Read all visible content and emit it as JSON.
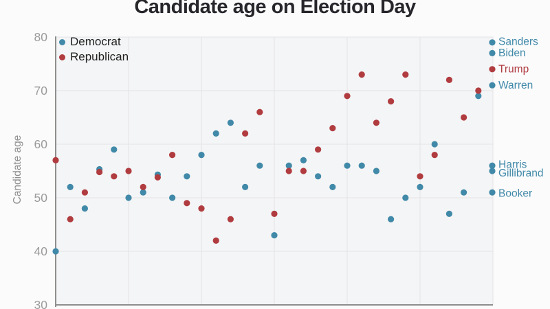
{
  "chart_data": {
    "type": "scatter",
    "title": "Candidate age on Election Day",
    "ylabel": "Candidate age",
    "ylim": [
      30,
      80
    ],
    "yticks": [
      80,
      70,
      60,
      50,
      40,
      30
    ],
    "ytick_labels": [
      "80",
      "70",
      "60",
      "50",
      "40",
      "30"
    ],
    "x_year_range": [
      1900,
      2020
    ],
    "gridline_years": [
      1920,
      1940,
      1960,
      1980,
      2000,
      2020
    ],
    "grid": true,
    "legend_position": "top-left",
    "legend": [
      {
        "label": "Democrat",
        "color": "#4189a8"
      },
      {
        "label": "Republican",
        "color": "#b03c40"
      }
    ],
    "series": [
      {
        "name": "Democrat",
        "points": [
          {
            "year": 1900,
            "age": 40
          },
          {
            "year": 1904,
            "age": 52
          },
          {
            "year": 1908,
            "age": 48
          },
          {
            "year": 1912,
            "age": 55
          },
          {
            "year": 1916,
            "age": 59
          },
          {
            "year": 1920,
            "age": 50
          },
          {
            "year": 1924,
            "age": 51
          },
          {
            "year": 1928,
            "age": 54
          },
          {
            "year": 1932,
            "age": 50
          },
          {
            "year": 1936,
            "age": 54
          },
          {
            "year": 1940,
            "age": 58
          },
          {
            "year": 1944,
            "age": 62
          },
          {
            "year": 1948,
            "age": 64
          },
          {
            "year": 1952,
            "age": 52
          },
          {
            "year": 1956,
            "age": 56
          },
          {
            "year": 1960,
            "age": 43
          },
          {
            "year": 1964,
            "age": 56
          },
          {
            "year": 1968,
            "age": 57
          },
          {
            "year": 1972,
            "age": 54
          },
          {
            "year": 1976,
            "age": 52
          },
          {
            "year": 1980,
            "age": 56
          },
          {
            "year": 1984,
            "age": 56
          },
          {
            "year": 1988,
            "age": 55
          },
          {
            "year": 1992,
            "age": 46
          },
          {
            "year": 1996,
            "age": 50
          },
          {
            "year": 2000,
            "age": 52
          },
          {
            "year": 2004,
            "age": 60
          },
          {
            "year": 2008,
            "age": 47
          },
          {
            "year": 2012,
            "age": 51
          },
          {
            "year": 2016,
            "age": 69
          }
        ]
      },
      {
        "name": "Republican",
        "points": [
          {
            "year": 1900,
            "age": 57
          },
          {
            "year": 1904,
            "age": 46
          },
          {
            "year": 1908,
            "age": 51
          },
          {
            "year": 1912,
            "age": 55
          },
          {
            "year": 1916,
            "age": 54
          },
          {
            "year": 1920,
            "age": 55
          },
          {
            "year": 1924,
            "age": 52
          },
          {
            "year": 1928,
            "age": 54
          },
          {
            "year": 1932,
            "age": 58
          },
          {
            "year": 1936,
            "age": 49
          },
          {
            "year": 1940,
            "age": 48
          },
          {
            "year": 1944,
            "age": 42
          },
          {
            "year": 1948,
            "age": 46
          },
          {
            "year": 1952,
            "age": 62
          },
          {
            "year": 1956,
            "age": 66
          },
          {
            "year": 1960,
            "age": 47
          },
          {
            "year": 1964,
            "age": 55
          },
          {
            "year": 1968,
            "age": 55
          },
          {
            "year": 1972,
            "age": 59
          },
          {
            "year": 1976,
            "age": 63
          },
          {
            "year": 1980,
            "age": 69
          },
          {
            "year": 1984,
            "age": 73
          },
          {
            "year": 1988,
            "age": 64
          },
          {
            "year": 1992,
            "age": 68
          },
          {
            "year": 1996,
            "age": 73
          },
          {
            "year": 2000,
            "age": 54
          },
          {
            "year": 2004,
            "age": 58
          },
          {
            "year": 2008,
            "age": 72
          },
          {
            "year": 2012,
            "age": 65
          },
          {
            "year": 2016,
            "age": 70
          }
        ]
      }
    ],
    "labeled_candidates_2020": [
      {
        "name": "Sanders",
        "party": "Democrat",
        "age": 79,
        "label_y_age": 79.2
      },
      {
        "name": "Biden",
        "party": "Democrat",
        "age": 77,
        "label_y_age": 77.1
      },
      {
        "name": "Trump",
        "party": "Republican",
        "age": 74,
        "label_y_age": 74.1
      },
      {
        "name": "Warren",
        "party": "Democrat",
        "age": 71,
        "label_y_age": 71.1
      },
      {
        "name": "Harris",
        "party": "Democrat",
        "age": 56,
        "label_y_age": 56.3
      },
      {
        "name": "Gillibrand",
        "party": "Democrat",
        "age": 55,
        "label_y_age": 54.7
      },
      {
        "name": "Booker",
        "party": "Democrat",
        "age": 51,
        "label_y_age": 50.9
      }
    ]
  },
  "colors": {
    "democrat": "#4189a8",
    "republican": "#b03c40",
    "title": "#26262b",
    "tick": "#9b9b9b",
    "axis_title": "#8e8e8e",
    "legend_text": "#1f1f1f",
    "grid": "#e3e3e6",
    "axis": "#8e8e8e",
    "plot_bg": "#f4f5f6",
    "page_bg": "#fbfbfc"
  }
}
